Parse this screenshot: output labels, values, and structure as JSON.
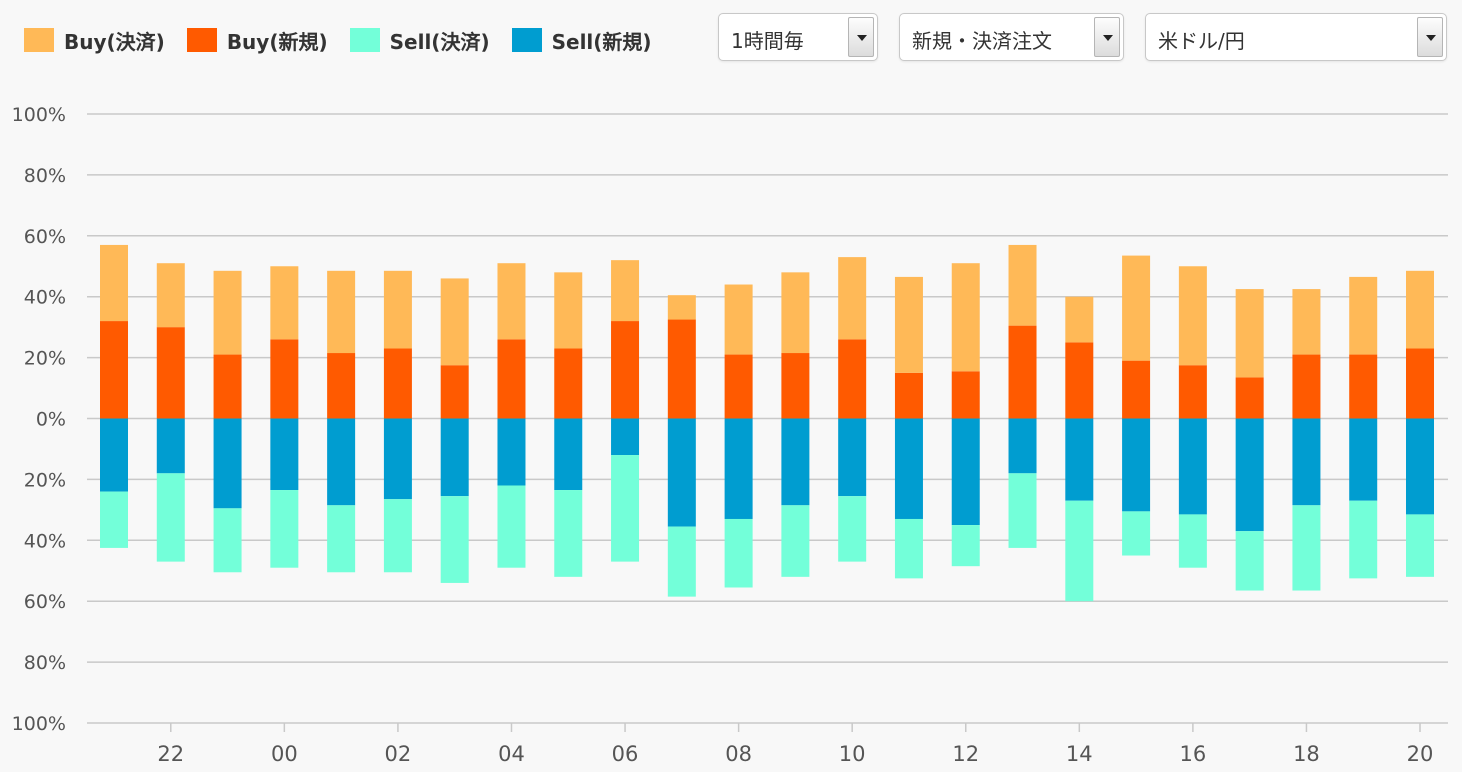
{
  "legend": {
    "buy_close": "Buy(決済)",
    "buy_new": "Buy(新規)",
    "sell_close": "Sell(決済)",
    "sell_new": "Sell(新規)"
  },
  "colors": {
    "buy_close": "#ffb957",
    "buy_new": "#ff5a00",
    "sell_close": "#73ffd9",
    "sell_new": "#009dd0",
    "grid": "#c9c9c9",
    "text": "#555555"
  },
  "controls": {
    "interval": "1時間毎",
    "order_type": "新規・決済注文",
    "currency_pair": "米ドル/円"
  },
  "chart_data": {
    "type": "bar",
    "stacked": true,
    "y_tick_labels": [
      "100%",
      "80%",
      "60%",
      "40%",
      "20%",
      "0%",
      "20%",
      "40%",
      "60%",
      "80%",
      "100%"
    ],
    "ylim": [
      -100,
      100
    ],
    "x_tick_labels": [
      "22",
      "00",
      "02",
      "04",
      "06",
      "08",
      "10",
      "12",
      "14",
      "16",
      "18",
      "20"
    ],
    "grid": true,
    "series": [
      {
        "name": "Buy(新規)",
        "key": "buy_new",
        "values": [
          32,
          30,
          21,
          26,
          21.5,
          23,
          17.5,
          26,
          23,
          32,
          32.5,
          21,
          21.5,
          26,
          15,
          15.5,
          30.5,
          25,
          19,
          17.5,
          13.5,
          21,
          21,
          23
        ]
      },
      {
        "name": "Buy(決済)",
        "key": "buy_close",
        "values": [
          25,
          21,
          27.5,
          24,
          27,
          25.5,
          28.5,
          25,
          25,
          20,
          8,
          23,
          26.5,
          27,
          31.5,
          35.5,
          26.5,
          15,
          34.5,
          32.5,
          29,
          21.5,
          25.5,
          25.5
        ]
      },
      {
        "name": "Sell(新規)",
        "key": "sell_new",
        "values": [
          -24,
          -18,
          -29.5,
          -23.5,
          -28.5,
          -26.5,
          -25.5,
          -22,
          -23.5,
          -12,
          -35.5,
          -33,
          -28.5,
          -25.5,
          -33,
          -35,
          -18,
          -27,
          -30.5,
          -31.5,
          -37,
          -28.5,
          -27,
          -31.5
        ]
      },
      {
        "name": "Sell(決済)",
        "key": "sell_close",
        "values": [
          -18.5,
          -29,
          -21,
          -25.5,
          -22,
          -24,
          -28.5,
          -27,
          -28.5,
          -35,
          -23,
          -22.5,
          -23.5,
          -21.5,
          -19.5,
          -13.5,
          -24.5,
          -33,
          -14.5,
          -17.5,
          -19.5,
          -28,
          -25.5,
          -20.5
        ]
      }
    ]
  }
}
